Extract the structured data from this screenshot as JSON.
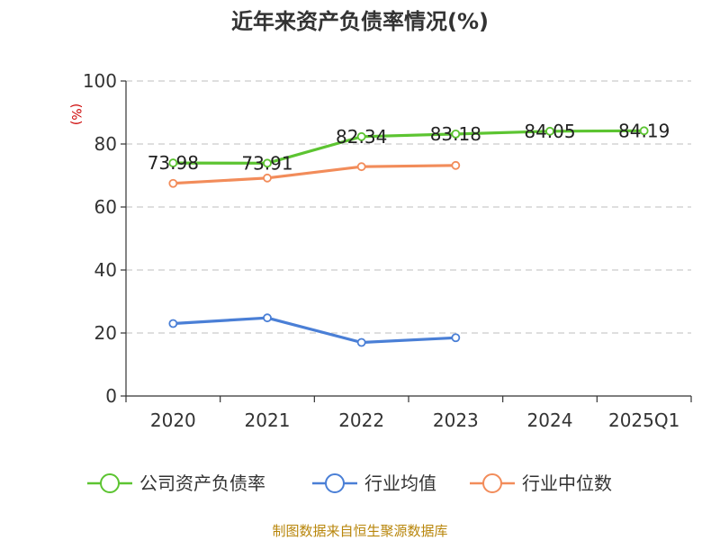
{
  "chart_data": {
    "type": "line",
    "title": "近年来资产负债率情况(%)",
    "ylabel": "(%)",
    "xlabel": "",
    "categories": [
      "2020",
      "2021",
      "2022",
      "2023",
      "2024",
      "2025Q1"
    ],
    "ylim": [
      0,
      100
    ],
    "yticks": [
      0,
      20,
      40,
      60,
      80,
      100
    ],
    "grid": true,
    "legend_position": "bottom",
    "series": [
      {
        "name": "公司资产负债率",
        "color": "#5cc431",
        "values": [
          73.98,
          73.91,
          82.34,
          83.18,
          84.05,
          84.19
        ],
        "labels": [
          "73.98",
          "73.91",
          "82.34",
          "83.18",
          "84.05",
          "84.19"
        ]
      },
      {
        "name": "行业均值",
        "color": "#4a7fd6",
        "values": [
          23,
          24.8,
          17,
          18.5,
          null,
          null
        ],
        "labels": []
      },
      {
        "name": "行业中位数",
        "color": "#f28c5a",
        "values": [
          67.5,
          69.2,
          72.8,
          73.2,
          null,
          null
        ],
        "labels": []
      }
    ],
    "source": "制图数据来自恒生聚源数据库"
  }
}
